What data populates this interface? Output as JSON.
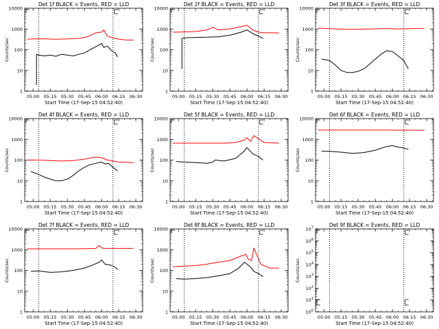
{
  "chart_data": [
    {
      "type": "line",
      "title": "Det 1f BLACK = Events, RED = LLD",
      "ylabel": "Counts/sec",
      "xlabel": "Start Time (17-Sep-15 04:52:40)",
      "x_ticks": [
        "05:00",
        "05:15",
        "05:30",
        "05:45",
        "06:00",
        "06:15",
        "06:30"
      ],
      "y_ticks": [
        "1",
        "10",
        "100",
        "1000",
        "10000"
      ],
      "xlim": [
        "04:52:40",
        "06:36:00"
      ],
      "ylim": [
        1,
        10000
      ],
      "yscale": "log",
      "markers": [
        "05:05",
        "06:10"
      ],
      "series": [
        {
          "color": "#ff0000",
          "x": [
            "04:55",
            "05:00",
            "05:10",
            "05:20",
            "05:30",
            "05:40",
            "05:48",
            "05:55",
            "06:00",
            "06:02",
            "06:05",
            "06:12",
            "06:20",
            "06:28"
          ],
          "values": [
            320,
            330,
            330,
            320,
            330,
            350,
            420,
            650,
            700,
            900,
            450,
            340,
            300,
            290
          ]
        },
        {
          "color": "#000000",
          "x": [
            "05:03",
            "05:03",
            "05:05",
            "05:10",
            "05:15",
            "05:20",
            "05:25",
            "05:30",
            "05:35",
            "05:40",
            "05:45",
            "05:50",
            "05:55",
            "06:00",
            "06:02",
            "06:05",
            "06:08",
            "06:10",
            "06:12",
            "06:14"
          ],
          "values": [
            2,
            60,
            55,
            50,
            55,
            48,
            60,
            55,
            50,
            60,
            70,
            100,
            140,
            200,
            130,
            150,
            100,
            80,
            70,
            45
          ]
        }
      ]
    },
    {
      "type": "line",
      "title": "Det 2f BLACK = Events, RED = LLD",
      "ylabel": "Counts/sec",
      "xlabel": "Start Time (17-Sep-15 04:52:40)",
      "x_ticks": [
        "05:00",
        "05:15",
        "05:30",
        "05:45",
        "06:00",
        "06:15",
        "06:30"
      ],
      "y_ticks": [
        "1",
        "10",
        "100",
        "1000",
        "10000"
      ],
      "xlim": [
        "04:52:40",
        "06:36:00"
      ],
      "ylim": [
        1,
        10000
      ],
      "yscale": "log",
      "markers": [
        "05:05",
        "06:10"
      ],
      "series": [
        {
          "color": "#ff0000",
          "x": [
            "04:55",
            "05:05",
            "05:15",
            "05:25",
            "05:30",
            "05:35",
            "05:45",
            "05:55",
            "06:00",
            "06:05",
            "06:10",
            "06:15",
            "06:25",
            "06:28"
          ],
          "values": [
            700,
            720,
            750,
            900,
            1200,
            900,
            1000,
            1300,
            1500,
            900,
            700,
            650,
            650,
            640
          ]
        },
        {
          "color": "#000000",
          "x": [
            "05:03",
            "05:03",
            "05:08",
            "05:15",
            "05:25",
            "05:35",
            "05:45",
            "05:55",
            "06:00",
            "06:05",
            "06:10",
            "06:14"
          ],
          "values": [
            12,
            350,
            380,
            390,
            400,
            420,
            500,
            700,
            900,
            600,
            450,
            350
          ]
        }
      ]
    },
    {
      "type": "line",
      "title": "Det 3f BLACK = Events, RED = LLD",
      "ylabel": "Counts/sec",
      "xlabel": "Start Time (17-Sep-15 04:52:40)",
      "x_ticks": [
        "05:00",
        "05:15",
        "05:30",
        "05:45",
        "06:00",
        "06:15",
        "06:30"
      ],
      "y_ticks": [
        "1",
        "10",
        "100",
        "1000",
        "10000"
      ],
      "xlim": [
        "04:52:40",
        "06:36:00"
      ],
      "ylim": [
        1,
        10000
      ],
      "yscale": "log",
      "markers": [
        "05:05",
        "06:10"
      ],
      "series": [
        {
          "color": "#ff0000",
          "x": [
            "04:55",
            "05:10",
            "05:25",
            "05:40",
            "05:55",
            "06:05",
            "06:20",
            "06:28"
          ],
          "values": [
            1100,
            1000,
            950,
            1000,
            1050,
            1000,
            1050,
            1050
          ]
        },
        {
          "color": "#000000",
          "x": [
            "04:58",
            "05:05",
            "05:10",
            "05:15",
            "05:20",
            "05:25",
            "05:30",
            "05:35",
            "05:40",
            "05:45",
            "05:50",
            "05:55",
            "06:00",
            "06:05",
            "06:10",
            "06:12",
            "06:14"
          ],
          "values": [
            35,
            30,
            18,
            10,
            8,
            8,
            9,
            12,
            20,
            35,
            60,
            90,
            80,
            50,
            30,
            18,
            12
          ]
        }
      ]
    },
    {
      "type": "line",
      "title": "Det 4f BLACK = Events, RED = LLD",
      "ylabel": "Counts/sec",
      "xlabel": "Start Time (17-Sep-15 04:52:40)",
      "x_ticks": [
        "05:00",
        "05:15",
        "05:30",
        "05:45",
        "06:00",
        "06:15",
        "06:30"
      ],
      "y_ticks": [
        "1",
        "10",
        "100",
        "1000",
        "10000"
      ],
      "xlim": [
        "04:52:40",
        "06:36:00"
      ],
      "ylim": [
        1,
        10000
      ],
      "yscale": "log",
      "markers": [
        "05:05",
        "06:10"
      ],
      "series": [
        {
          "color": "#ff0000",
          "x": [
            "04:55",
            "05:05",
            "05:15",
            "05:25",
            "05:35",
            "05:45",
            "05:55",
            "06:00",
            "06:05",
            "06:15",
            "06:28"
          ],
          "values": [
            100,
            100,
            95,
            90,
            95,
            110,
            140,
            130,
            100,
            80,
            75
          ]
        },
        {
          "color": "#000000",
          "x": [
            "04:58",
            "05:05",
            "05:10",
            "05:15",
            "05:20",
            "05:25",
            "05:30",
            "05:35",
            "05:40",
            "05:45",
            "05:50",
            "05:55",
            "06:00",
            "06:03",
            "06:06",
            "06:10",
            "06:14"
          ],
          "values": [
            28,
            20,
            15,
            12,
            10,
            10,
            12,
            18,
            30,
            45,
            60,
            70,
            80,
            65,
            70,
            45,
            30
          ]
        }
      ]
    },
    {
      "type": "line",
      "title": "Det 5f BLACK = Events, RED = LLD",
      "ylabel": "Counts/sec",
      "xlabel": "Start Time (17-Sep-15 04:52:40)",
      "x_ticks": [
        "05:00",
        "05:15",
        "05:30",
        "05:45",
        "06:00",
        "06:15",
        "06:30"
      ],
      "y_ticks": [
        "1",
        "10",
        "100",
        "1000",
        "10000"
      ],
      "xlim": [
        "04:52:40",
        "06:36:00"
      ],
      "ylim": [
        1,
        10000
      ],
      "yscale": "log",
      "markers": [
        "05:05",
        "06:10"
      ],
      "series": [
        {
          "color": "#ff0000",
          "x": [
            "04:55",
            "05:10",
            "05:25",
            "05:40",
            "05:50",
            "05:57",
            "06:00",
            "06:03",
            "06:06",
            "06:15",
            "06:28"
          ],
          "values": [
            650,
            650,
            650,
            650,
            700,
            900,
            1200,
            800,
            1500,
            700,
            650
          ]
        },
        {
          "color": "#000000",
          "x": [
            "04:58",
            "05:05",
            "05:15",
            "05:25",
            "05:30",
            "05:32",
            "05:40",
            "05:50",
            "05:57",
            "06:00",
            "06:05",
            "06:10",
            "06:14"
          ],
          "values": [
            85,
            80,
            75,
            70,
            80,
            100,
            90,
            120,
            250,
            400,
            200,
            150,
            100
          ]
        }
      ]
    },
    {
      "type": "line",
      "title": "Det 6f BLACK = Events, RED = LLD",
      "ylabel": "Counts/sec",
      "xlabel": "Start Time (17-Sep-15 04:52:40)",
      "x_ticks": [
        "05:00",
        "05:15",
        "05:30",
        "05:45",
        "06:00",
        "06:15",
        "06:30"
      ],
      "y_ticks": [
        "1",
        "10",
        "100",
        "1000",
        "10000"
      ],
      "xlim": [
        "04:52:40",
        "06:36:00"
      ],
      "ylim": [
        1,
        10000
      ],
      "yscale": "log",
      "markers": [
        "05:05",
        "06:10"
      ],
      "series": [
        {
          "color": "#ff0000",
          "x": [
            "04:55",
            "05:15",
            "05:35",
            "05:55",
            "06:10",
            "06:28"
          ],
          "values": [
            2800,
            2800,
            2800,
            2800,
            2750,
            2750
          ]
        },
        {
          "color": "#000000",
          "x": [
            "04:58",
            "05:05",
            "05:15",
            "05:25",
            "05:35",
            "05:45",
            "05:55",
            "06:00",
            "06:05",
            "06:10",
            "06:14"
          ],
          "values": [
            270,
            260,
            240,
            210,
            230,
            300,
            450,
            500,
            420,
            380,
            330
          ]
        }
      ]
    },
    {
      "type": "line",
      "title": "Det 7f BLACK = Events, RED = LLD",
      "ylabel": "Counts/sec",
      "xlabel": "Start Time (17-Sep-15 04:52:40)",
      "x_ticks": [
        "05:00",
        "05:15",
        "05:30",
        "05:45",
        "06:00",
        "06:15",
        "06:30"
      ],
      "y_ticks": [
        "1",
        "10",
        "100",
        "1000",
        "10000"
      ],
      "xlim": [
        "04:52:40",
        "06:36:00"
      ],
      "ylim": [
        1,
        10000
      ],
      "yscale": "log",
      "markers": [
        "05:05",
        "06:10"
      ],
      "series": [
        {
          "color": "#ff0000",
          "x": [
            "04:55",
            "05:10",
            "05:25",
            "05:40",
            "05:55",
            "05:58",
            "06:00",
            "06:03",
            "06:15",
            "06:28"
          ],
          "values": [
            1100,
            1100,
            1100,
            1100,
            1150,
            1600,
            1200,
            1150,
            1150,
            1150
          ]
        },
        {
          "color": "#000000",
          "x": [
            "04:58",
            "05:05",
            "05:15",
            "05:25",
            "05:35",
            "05:45",
            "05:52",
            "05:58",
            "06:00",
            "06:03",
            "06:08",
            "06:12",
            "06:14"
          ],
          "values": [
            90,
            95,
            80,
            85,
            100,
            130,
            180,
            250,
            320,
            200,
            180,
            140,
            110
          ]
        }
      ]
    },
    {
      "type": "line",
      "title": "Det 8f BLACK = Events, RED = LLD",
      "ylabel": "Counts/sec",
      "xlabel": "Start Time (17-Sep-15 04:52:40)",
      "x_ticks": [
        "05:00",
        "05:15",
        "05:30",
        "05:45",
        "06:00",
        "06:15",
        "06:30"
      ],
      "y_ticks": [
        "1",
        "10",
        "100",
        "1000",
        "10000"
      ],
      "xlim": [
        "04:52:40",
        "06:36:00"
      ],
      "ylim": [
        1,
        10000
      ],
      "yscale": "log",
      "markers": [
        "05:05",
        "06:10"
      ],
      "series": [
        {
          "color": "#ff0000",
          "x": [
            "04:55",
            "05:05",
            "05:15",
            "05:25",
            "05:35",
            "05:45",
            "05:55",
            "05:59",
            "06:01",
            "06:04",
            "06:06",
            "06:12",
            "06:20",
            "06:28"
          ],
          "values": [
            150,
            160,
            170,
            200,
            250,
            300,
            500,
            600,
            350,
            300,
            1200,
            200,
            130,
            130
          ]
        },
        {
          "color": "#000000",
          "x": [
            "04:58",
            "05:05",
            "05:15",
            "05:25",
            "05:35",
            "05:45",
            "05:52",
            "05:58",
            "06:01",
            "06:04",
            "06:06",
            "06:10",
            "06:14"
          ],
          "values": [
            40,
            38,
            40,
            45,
            55,
            70,
            120,
            250,
            180,
            130,
            90,
            70,
            50
          ]
        }
      ]
    },
    {
      "type": "line",
      "title": "Det 9f BLACK = Events, RED = LLD",
      "ylabel": "Counts/sec",
      "xlabel": "Start Time (17-Sep-15 04:52:40)",
      "x_ticks": [
        "05:00",
        "05:15",
        "05:30",
        "05:45",
        "06:00",
        "06:15",
        "06:30"
      ],
      "y_ticks": [
        "10^0",
        "10^1",
        "10^2",
        "10^3",
        "10^4",
        "10^5",
        "10^6",
        "10^7"
      ],
      "xlim": [
        "04:52:40",
        "06:36:00"
      ],
      "ylim": [
        1,
        10000000
      ],
      "yscale": "log",
      "markers": [
        "05:05",
        "06:10"
      ],
      "series": []
    }
  ]
}
